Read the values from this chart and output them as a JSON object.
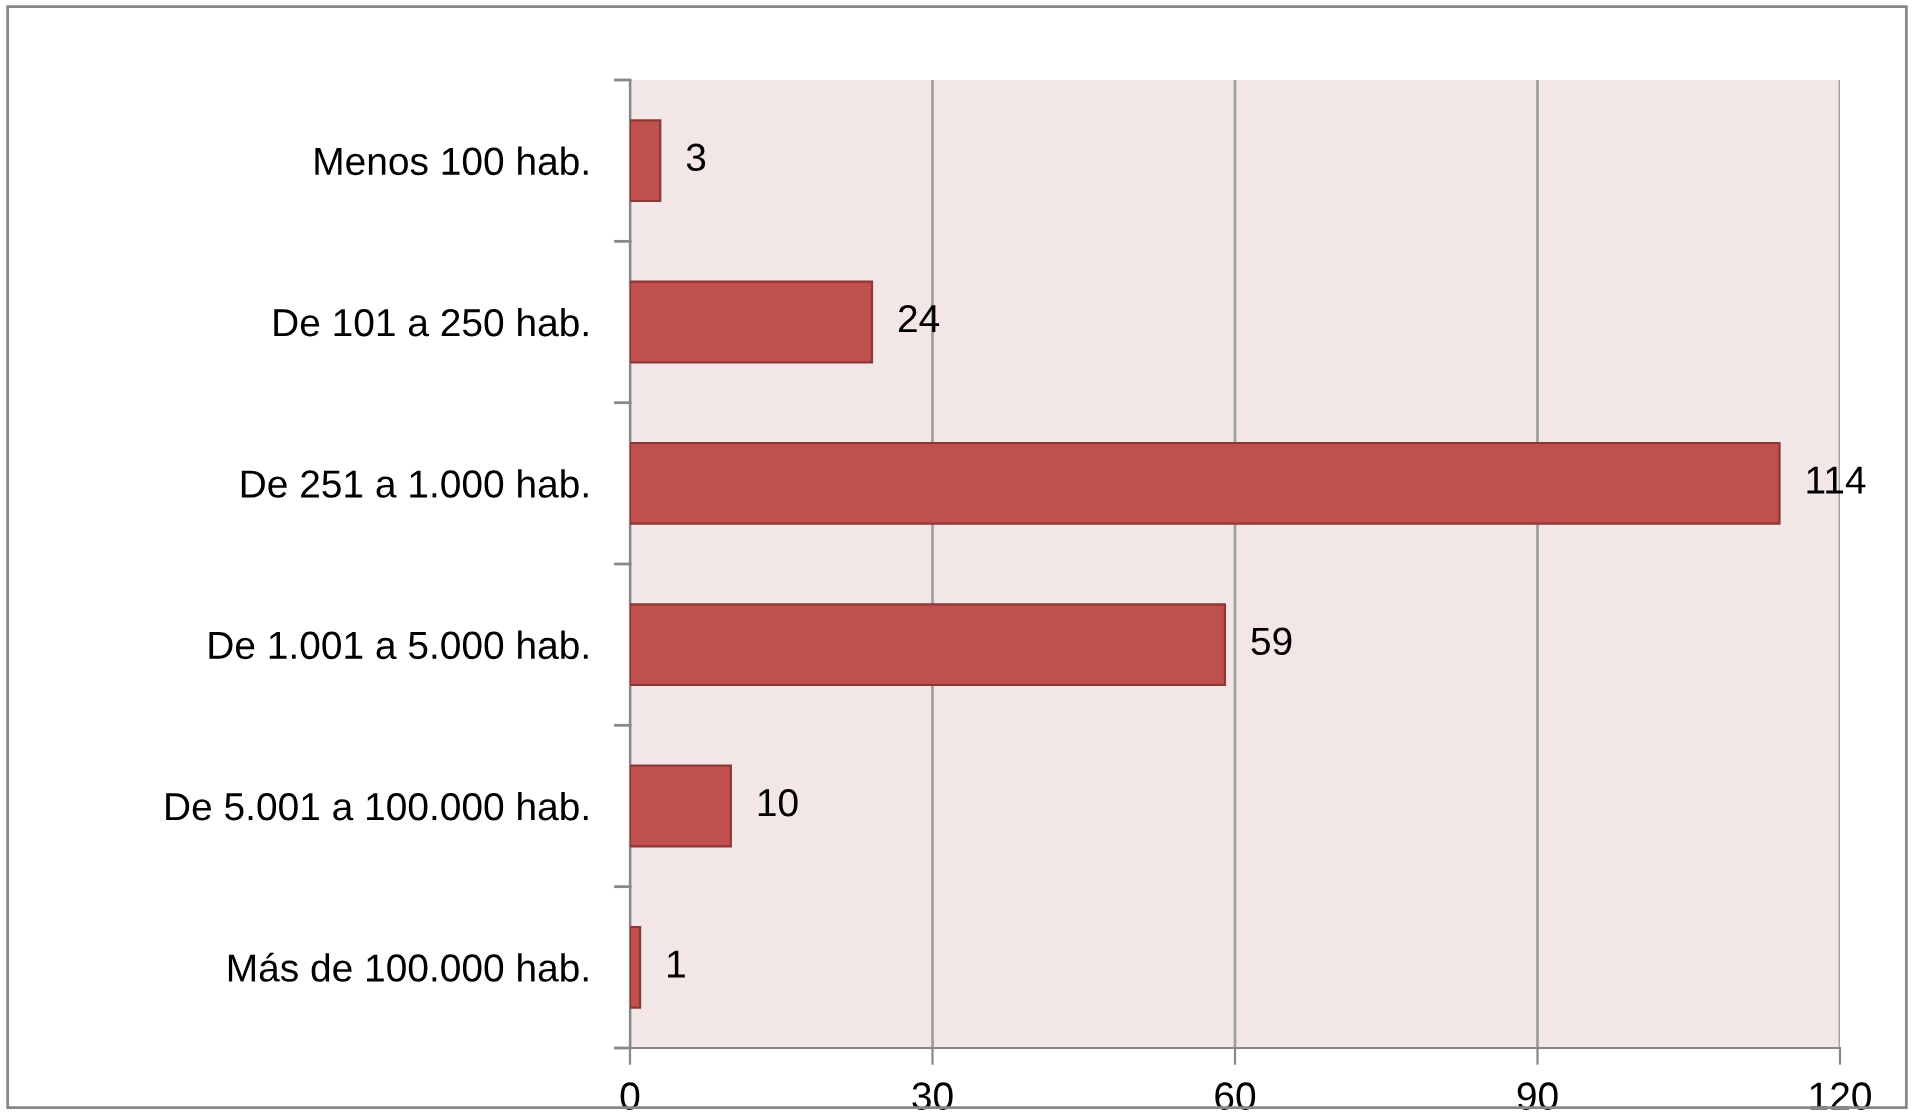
{
  "chart_data": {
    "type": "bar",
    "orientation": "horizontal",
    "categories": [
      "Menos 100 hab.",
      "De 101 a 250 hab.",
      "De 251 a 1.000 hab.",
      "De 1.001 a 5.000 hab.",
      "De 5.001 a 100.000 hab.",
      "Más de 100.000 hab."
    ],
    "values": [
      3,
      24,
      114,
      59,
      10,
      1
    ],
    "color": "#c0504d",
    "xlim": [
      0,
      120
    ],
    "xticks": [
      0,
      30,
      60,
      90,
      120
    ],
    "grid": "x",
    "data_labels": true
  }
}
